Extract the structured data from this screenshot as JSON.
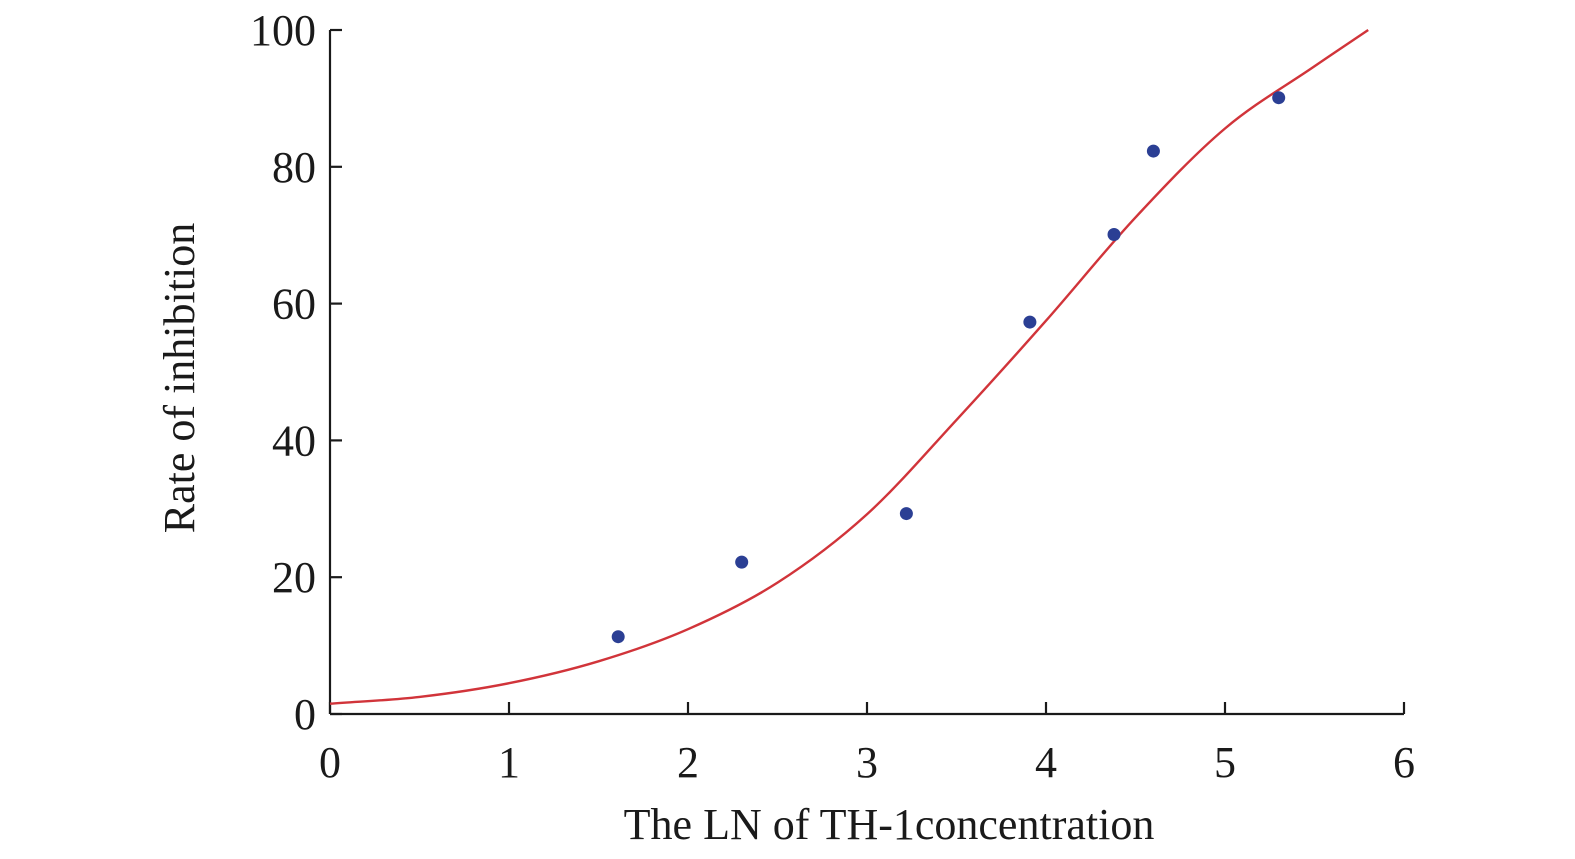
{
  "chart_data": {
    "type": "scatter",
    "title": "",
    "xlabel": "The LN of TH-1concentration",
    "ylabel": "Rate of inhibition",
    "xlim": [
      0,
      6
    ],
    "ylim": [
      0,
      100
    ],
    "x_ticks": [
      0,
      1,
      2,
      3,
      4,
      5,
      6
    ],
    "y_ticks": [
      0,
      20,
      40,
      60,
      80,
      100
    ],
    "grid": false,
    "legend": "none",
    "series": [
      {
        "type": "scatter",
        "x": [
          1.61,
          2.3,
          3.22,
          3.91,
          4.38,
          4.6,
          5.3
        ],
        "y": [
          11.3,
          22.2,
          29.3,
          57.3,
          70.1,
          82.3,
          90.1
        ]
      },
      {
        "type": "line",
        "x": [
          0,
          0.5,
          1.0,
          1.5,
          2.0,
          2.5,
          3.0,
          3.5,
          4.0,
          4.5,
          5.0,
          5.5,
          5.8
        ],
        "y": [
          1.5,
          2.5,
          4.5,
          7.7,
          12.4,
          19.2,
          29.2,
          43.0,
          57.5,
          72.6,
          85.6,
          94.7,
          100.0
        ]
      }
    ],
    "colors": {
      "points": "#2b3f94",
      "fit": "#d1343a",
      "axis": "#1a1a1a"
    }
  }
}
